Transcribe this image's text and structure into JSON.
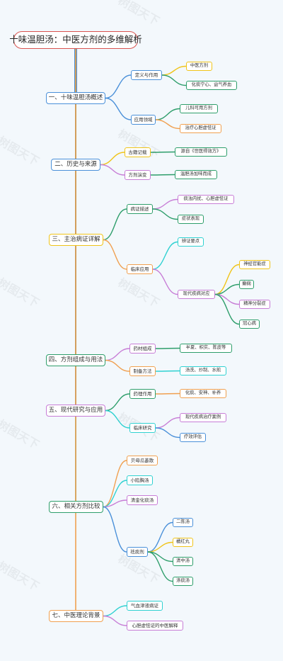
{
  "watermark": "树图天下",
  "root": {
    "id": "root",
    "text": "十味温胆汤：中医方剂的多维解析"
  },
  "nodes": [
    {
      "id": "s1",
      "text": "一、十味温胆汤概述",
      "color": "#4a90d9"
    },
    {
      "id": "s1a",
      "text": "定义与作用",
      "color": "#4a90d9"
    },
    {
      "id": "s1a1",
      "text": "中医方剂",
      "color": "#f0c419"
    },
    {
      "id": "s1a2",
      "text": "化痰宁心、益气养血",
      "color": "#2e9e6b"
    },
    {
      "id": "s1b",
      "text": "应用领域",
      "color": "#4a90d9"
    },
    {
      "id": "s1b1",
      "text": "儿科可用方剂",
      "color": "#2e9e6b"
    },
    {
      "id": "s1b2",
      "text": "治疗心胆虚怯证",
      "color": "#f0a050"
    },
    {
      "id": "s2",
      "text": "二、历史与来源",
      "color": "#4a90d9"
    },
    {
      "id": "s2a",
      "text": "古籍记载",
      "color": "#f0c419"
    },
    {
      "id": "s2a1",
      "text": "源自《世医得效方》",
      "color": "#2e9e6b"
    },
    {
      "id": "s2b",
      "text": "方剂演变",
      "color": "#c77dd6"
    },
    {
      "id": "s2b1",
      "text": "温胆汤加味而成",
      "color": "#2e9e6b"
    },
    {
      "id": "s3",
      "text": "三、主治病证详解",
      "color": "#f0c419"
    },
    {
      "id": "s3a",
      "text": "病证描述",
      "color": "#2e9e6b"
    },
    {
      "id": "s3a1",
      "text": "痰浊内扰、心胆虚怯证",
      "color": "#c77dd6"
    },
    {
      "id": "s3a2",
      "text": "症状表现",
      "color": "#2e9e6b"
    },
    {
      "id": "s3b",
      "text": "临床应用",
      "color": "#f0a050"
    },
    {
      "id": "s3b1",
      "text": "辨证要点",
      "color": "#2fd1d1"
    },
    {
      "id": "s3b2",
      "text": "现代疾病对应",
      "color": "#c77dd6"
    },
    {
      "id": "s3b2a",
      "text": "神经官能症",
      "color": "#f0c419"
    },
    {
      "id": "s3b2b",
      "text": "癫痫",
      "color": "#2e9e6b"
    },
    {
      "id": "s3b2c",
      "text": "精神分裂症",
      "color": "#c77dd6"
    },
    {
      "id": "s3b2d",
      "text": "冠心病",
      "color": "#2e9e6b"
    },
    {
      "id": "s4",
      "text": "四、方剂组成与用法",
      "color": "#2e9e6b"
    },
    {
      "id": "s4a",
      "text": "药材组成",
      "color": "#c77dd6"
    },
    {
      "id": "s4a1",
      "text": "半夏、枳实、陈皮等",
      "color": "#2e9e6b"
    },
    {
      "id": "s4b",
      "text": "制备方法",
      "color": "#f0a050"
    },
    {
      "id": "s4b1",
      "text": "汤洗、炒制、水煎",
      "color": "#2fd1d1"
    },
    {
      "id": "s5",
      "text": "五、现代研究与应用",
      "color": "#c77dd6"
    },
    {
      "id": "s5a",
      "text": "药理作用",
      "color": "#2e9e6b"
    },
    {
      "id": "s5a1",
      "text": "化痰、安神、补养",
      "color": "#f0a050"
    },
    {
      "id": "s5b",
      "text": "临床研究",
      "color": "#2fd1d1"
    },
    {
      "id": "s5b1",
      "text": "现代疾病治疗案例",
      "color": "#c77dd6"
    },
    {
      "id": "s5b2",
      "text": "疗效评估",
      "color": "#4a90d9"
    },
    {
      "id": "s6",
      "text": "六、相关方剂比较",
      "color": "#2e9e6b"
    },
    {
      "id": "s6a",
      "text": "贝母瓜蒌散",
      "color": "#f0a050"
    },
    {
      "id": "s6b",
      "text": "小陷胸汤",
      "color": "#2fd1d1"
    },
    {
      "id": "s6c",
      "text": "清金化痰汤",
      "color": "#c77dd6"
    },
    {
      "id": "s6d",
      "text": "祛痰剂",
      "color": "#4a90d9"
    },
    {
      "id": "s6d1",
      "text": "二陈汤",
      "color": "#4a90d9"
    },
    {
      "id": "s6d2",
      "text": "橘红丸",
      "color": "#f0c419"
    },
    {
      "id": "s6d3",
      "text": "清中汤",
      "color": "#2e9e6b"
    },
    {
      "id": "s6d4",
      "text": "涤痰汤",
      "color": "#2e9e6b"
    },
    {
      "id": "s7",
      "text": "七、中医理论背景",
      "color": "#f0a050"
    },
    {
      "id": "s7a",
      "text": "气血津液病证",
      "color": "#2fd1d1"
    },
    {
      "id": "s7b",
      "text": "心胆虚怯证的中医解释",
      "color": "#c77dd6"
    }
  ]
}
